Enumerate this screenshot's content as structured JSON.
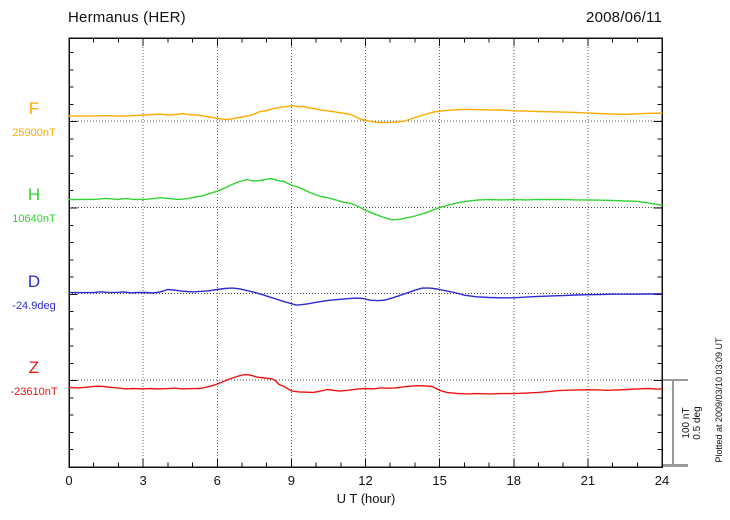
{
  "header": {
    "title": "Hermanus (HER)",
    "date": "2008/06/11"
  },
  "chart_data": {
    "type": "line",
    "station": "Hermanus (HER)",
    "date": "2008/06/11",
    "xlabel": "U T (hour)",
    "x_range": [
      0,
      24
    ],
    "x_ticks": [
      0,
      3,
      6,
      9,
      12,
      15,
      18,
      21,
      24
    ],
    "x_minor_tick_hours": 1,
    "grid_vertical_hours": [
      3,
      6,
      9,
      12,
      15,
      18,
      21
    ],
    "y_minor_tick_nT": 20,
    "y_major_tick_nT": 100,
    "baseline_spacing_nT": 100,
    "scale_bar": {
      "line1": "100 nT",
      "line2": "0.5 deg",
      "amplitude_nT": 100,
      "amplitude_deg": 0.5
    },
    "plotted_at": "Plotted at 2009/03/10 03:09 UT",
    "legend_position": "left",
    "grid": "dotted",
    "series": [
      {
        "name": "F",
        "baseline_label": "25900nT",
        "baseline_value": 25900,
        "unit": "nT",
        "color": "#FFAA00",
        "points": [
          [
            0,
            5.7
          ],
          [
            0.5,
            5.7
          ],
          [
            1,
            5.7
          ],
          [
            1.5,
            6.3
          ],
          [
            2,
            5.7
          ],
          [
            2.5,
            6.0
          ],
          [
            3,
            6.9
          ],
          [
            3.4,
            7.5
          ],
          [
            3.7,
            8.0
          ],
          [
            4.0,
            6.9
          ],
          [
            4.3,
            7.5
          ],
          [
            4.6,
            8.6
          ],
          [
            4.9,
            7.2
          ],
          [
            5.2,
            6.9
          ],
          [
            5.5,
            5.5
          ],
          [
            5.8,
            4.0
          ],
          [
            6.1,
            2.5
          ],
          [
            6.4,
            1.7
          ],
          [
            6.7,
            3.0
          ],
          [
            7.0,
            4.6
          ],
          [
            7.4,
            6.9
          ],
          [
            7.7,
            10.7
          ],
          [
            8.0,
            12.0
          ],
          [
            8.3,
            14.6
          ],
          [
            8.6,
            16.0
          ],
          [
            8.9,
            17.0
          ],
          [
            9.1,
            17.8
          ],
          [
            9.3,
            16.3
          ],
          [
            9.5,
            16.9
          ],
          [
            9.7,
            14.9
          ],
          [
            9.9,
            14.6
          ],
          [
            10.2,
            12.6
          ],
          [
            10.5,
            11.7
          ],
          [
            11.0,
            9.5
          ],
          [
            11.4,
            7.5
          ],
          [
            11.8,
            2.0
          ],
          [
            12.1,
            0.3
          ],
          [
            12.4,
            -1.5
          ],
          [
            12.8,
            -1.8
          ],
          [
            13.2,
            -1.5
          ],
          [
            13.6,
            0.0
          ],
          [
            14.0,
            4.0
          ],
          [
            14.4,
            7.5
          ],
          [
            14.8,
            10.7
          ],
          [
            15.2,
            12.0
          ],
          [
            15.6,
            12.9
          ],
          [
            16.0,
            13.5
          ],
          [
            16.5,
            13.2
          ],
          [
            17.0,
            12.9
          ],
          [
            17.5,
            12.6
          ],
          [
            18.0,
            11.8
          ],
          [
            18.5,
            11.5
          ],
          [
            19.0,
            10.9
          ],
          [
            19.5,
            10.6
          ],
          [
            20.0,
            10.3
          ],
          [
            20.5,
            10.0
          ],
          [
            21.0,
            9.2
          ],
          [
            21.5,
            8.6
          ],
          [
            22.0,
            8.0
          ],
          [
            22.5,
            7.7
          ],
          [
            23.0,
            8.3
          ],
          [
            23.5,
            8.9
          ],
          [
            24.0,
            9.2
          ]
        ]
      },
      {
        "name": "H",
        "baseline_label": "10640nT",
        "baseline_value": 10640,
        "unit": "nT",
        "color": "#2FD42F",
        "points": [
          [
            0,
            9.0
          ],
          [
            0.5,
            9.2
          ],
          [
            1,
            9.2
          ],
          [
            1.5,
            10.3
          ],
          [
            2,
            9.2
          ],
          [
            2.3,
            10.3
          ],
          [
            2.6,
            9.2
          ],
          [
            3,
            9.2
          ],
          [
            3.4,
            10.0
          ],
          [
            3.7,
            11.2
          ],
          [
            4.0,
            10.3
          ],
          [
            4.4,
            9.2
          ],
          [
            4.8,
            10.0
          ],
          [
            5.1,
            12.0
          ],
          [
            5.4,
            13.2
          ],
          [
            5.7,
            16.1
          ],
          [
            6.0,
            18.7
          ],
          [
            6.3,
            22.4
          ],
          [
            6.6,
            26.4
          ],
          [
            6.9,
            29.9
          ],
          [
            7.2,
            32.2
          ],
          [
            7.45,
            30.5
          ],
          [
            7.7,
            31.0
          ],
          [
            7.95,
            32.2
          ],
          [
            8.2,
            33.3
          ],
          [
            8.45,
            31.0
          ],
          [
            8.7,
            29.9
          ],
          [
            8.9,
            27.0
          ],
          [
            9.05,
            25.3
          ],
          [
            9.2,
            24.1
          ],
          [
            9.5,
            20.7
          ],
          [
            9.75,
            17.2
          ],
          [
            9.95,
            14.9
          ],
          [
            10.2,
            12.6
          ],
          [
            10.5,
            10.9
          ],
          [
            10.8,
            8.6
          ],
          [
            11.1,
            6.0
          ],
          [
            11.4,
            4.6
          ],
          [
            11.7,
            1.1
          ],
          [
            12.0,
            -3.4
          ],
          [
            12.3,
            -6.9
          ],
          [
            12.6,
            -10.3
          ],
          [
            12.9,
            -13.2
          ],
          [
            13.1,
            -14.4
          ],
          [
            13.4,
            -13.8
          ],
          [
            13.7,
            -12.0
          ],
          [
            14.0,
            -10.0
          ],
          [
            14.3,
            -7.5
          ],
          [
            14.6,
            -4.6
          ],
          [
            15.0,
            -0.3
          ],
          [
            15.4,
            2.9
          ],
          [
            15.8,
            5.7
          ],
          [
            16.2,
            7.5
          ],
          [
            16.6,
            8.6
          ],
          [
            17.0,
            8.9
          ],
          [
            17.5,
            8.6
          ],
          [
            18.0,
            8.9
          ],
          [
            18.5,
            8.6
          ],
          [
            19.0,
            9.2
          ],
          [
            19.5,
            8.9
          ],
          [
            20.0,
            9.2
          ],
          [
            20.5,
            8.6
          ],
          [
            21.0,
            8.6
          ],
          [
            21.5,
            8.3
          ],
          [
            22.0,
            8.0
          ],
          [
            22.5,
            7.5
          ],
          [
            23.0,
            6.9
          ],
          [
            23.4,
            5.2
          ],
          [
            23.7,
            3.7
          ],
          [
            24.0,
            2.6
          ]
        ]
      },
      {
        "name": "D",
        "baseline_label": "-24.9deg",
        "baseline_value": -24.9,
        "unit": "deg",
        "color": "#2B2BD0",
        "points": [
          [
            0,
            0.006
          ],
          [
            0.5,
            0.006
          ],
          [
            1,
            0.006
          ],
          [
            1.3,
            0.011
          ],
          [
            1.6,
            0.006
          ],
          [
            2.0,
            0.008
          ],
          [
            2.2,
            0.01
          ],
          [
            2.5,
            0.005
          ],
          [
            2.8,
            0.007
          ],
          [
            3.1,
            0.007
          ],
          [
            3.4,
            0.004
          ],
          [
            3.7,
            0.01
          ],
          [
            4.0,
            0.024
          ],
          [
            4.3,
            0.02
          ],
          [
            4.6,
            0.014
          ],
          [
            5.0,
            0.01
          ],
          [
            5.3,
            0.013
          ],
          [
            5.6,
            0.016
          ],
          [
            6.0,
            0.024
          ],
          [
            6.3,
            0.03
          ],
          [
            6.6,
            0.032
          ],
          [
            6.9,
            0.028
          ],
          [
            7.2,
            0.018
          ],
          [
            7.5,
            0.008
          ],
          [
            7.8,
            -0.004
          ],
          [
            8.1,
            -0.018
          ],
          [
            8.4,
            -0.032
          ],
          [
            8.7,
            -0.046
          ],
          [
            9.0,
            -0.058
          ],
          [
            9.2,
            -0.066
          ],
          [
            9.4,
            -0.064
          ],
          [
            9.7,
            -0.058
          ],
          [
            10.0,
            -0.05
          ],
          [
            10.4,
            -0.041
          ],
          [
            10.8,
            -0.035
          ],
          [
            11.2,
            -0.03
          ],
          [
            11.6,
            -0.026
          ],
          [
            11.9,
            -0.028
          ],
          [
            12.2,
            -0.038
          ],
          [
            12.5,
            -0.041
          ],
          [
            12.8,
            -0.037
          ],
          [
            13.1,
            -0.024
          ],
          [
            13.4,
            -0.01
          ],
          [
            13.7,
            0.005
          ],
          [
            14.0,
            0.02
          ],
          [
            14.3,
            0.032
          ],
          [
            14.6,
            0.032
          ],
          [
            14.9,
            0.027
          ],
          [
            15.2,
            0.018
          ],
          [
            15.6,
            0.007
          ],
          [
            16.0,
            -0.009
          ],
          [
            16.5,
            -0.018
          ],
          [
            17.0,
            -0.022
          ],
          [
            17.5,
            -0.024
          ],
          [
            18.0,
            -0.024
          ],
          [
            18.5,
            -0.02
          ],
          [
            19.0,
            -0.016
          ],
          [
            19.5,
            -0.013
          ],
          [
            20.0,
            -0.011
          ],
          [
            20.5,
            -0.008
          ],
          [
            21.0,
            -0.006
          ],
          [
            21.5,
            -0.005
          ],
          [
            22.0,
            -0.003
          ],
          [
            22.5,
            -0.003
          ],
          [
            23.0,
            -0.003
          ],
          [
            23.5,
            -0.002
          ],
          [
            24.0,
            -0.001
          ]
        ]
      },
      {
        "name": "Z",
        "baseline_label": "-23610nT",
        "baseline_value": -23610,
        "unit": "nT",
        "color": "#EE1212",
        "points": [
          [
            0,
            -8.6
          ],
          [
            0.4,
            -9.2
          ],
          [
            0.8,
            -8.0
          ],
          [
            1.1,
            -7.2
          ],
          [
            1.4,
            -7.5
          ],
          [
            1.7,
            -8.6
          ],
          [
            2.0,
            -9.2
          ],
          [
            2.3,
            -10.3
          ],
          [
            2.6,
            -9.8
          ],
          [
            3.0,
            -10.3
          ],
          [
            3.3,
            -9.8
          ],
          [
            3.6,
            -10.3
          ],
          [
            4.0,
            -10.0
          ],
          [
            4.3,
            -9.5
          ],
          [
            4.6,
            -10.3
          ],
          [
            5.0,
            -10.0
          ],
          [
            5.3,
            -9.8
          ],
          [
            5.6,
            -8.0
          ],
          [
            5.9,
            -5.7
          ],
          [
            6.2,
            -2.3
          ],
          [
            6.5,
            1.1
          ],
          [
            6.8,
            4.0
          ],
          [
            7.0,
            5.7
          ],
          [
            7.2,
            6.3
          ],
          [
            7.4,
            5.2
          ],
          [
            7.6,
            3.4
          ],
          [
            7.9,
            2.3
          ],
          [
            8.2,
            1.4
          ],
          [
            8.35,
            -0.6
          ],
          [
            8.5,
            -5.2
          ],
          [
            8.7,
            -7.5
          ],
          [
            9.0,
            -12.6
          ],
          [
            9.3,
            -13.8
          ],
          [
            9.6,
            -14.1
          ],
          [
            9.9,
            -14.4
          ],
          [
            10.2,
            -12.6
          ],
          [
            10.45,
            -11.0
          ],
          [
            10.7,
            -12.0
          ],
          [
            10.95,
            -12.9
          ],
          [
            11.3,
            -12.0
          ],
          [
            11.7,
            -10.3
          ],
          [
            12.0,
            -9.8
          ],
          [
            12.3,
            -10.3
          ],
          [
            12.6,
            -9.2
          ],
          [
            12.9,
            -9.5
          ],
          [
            13.2,
            -9.2
          ],
          [
            13.5,
            -8.0
          ],
          [
            13.8,
            -7.2
          ],
          [
            14.1,
            -6.6
          ],
          [
            14.4,
            -6.9
          ],
          [
            14.7,
            -7.5
          ],
          [
            15.0,
            -12.0
          ],
          [
            15.3,
            -14.4
          ],
          [
            15.7,
            -15.5
          ],
          [
            16.1,
            -16.1
          ],
          [
            16.5,
            -15.8
          ],
          [
            17.0,
            -16.1
          ],
          [
            17.5,
            -15.8
          ],
          [
            18.0,
            -15.8
          ],
          [
            18.5,
            -15.2
          ],
          [
            19.0,
            -14.4
          ],
          [
            19.4,
            -13.5
          ],
          [
            19.8,
            -12.3
          ],
          [
            20.2,
            -11.8
          ],
          [
            20.6,
            -11.5
          ],
          [
            21.0,
            -11.2
          ],
          [
            21.4,
            -11.5
          ],
          [
            21.8,
            -12.0
          ],
          [
            22.2,
            -11.5
          ],
          [
            22.6,
            -11.0
          ],
          [
            23.0,
            -10.3
          ],
          [
            23.4,
            -9.8
          ],
          [
            23.8,
            -10.6
          ],
          [
            24.0,
            -10.3
          ]
        ]
      }
    ]
  }
}
